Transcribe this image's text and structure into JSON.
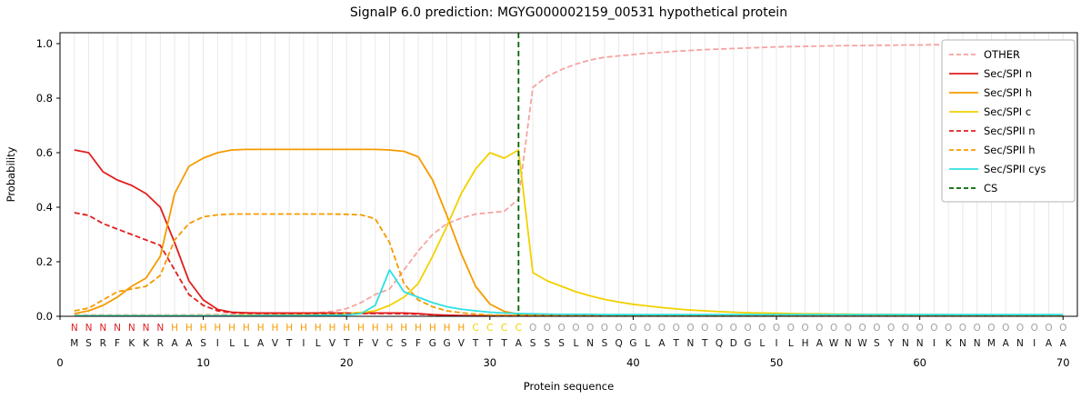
{
  "chart_data": {
    "type": "line",
    "title": "SignalP 6.0 prediction: MGYG000002159_00531 hypothetical protein",
    "xlabel": "Protein sequence",
    "ylabel": "Probability",
    "xlim": [
      0,
      71
    ],
    "ylim": [
      0,
      1.04
    ],
    "xticks": [
      0,
      10,
      20,
      30,
      40,
      50,
      60,
      70
    ],
    "yticks": [
      0.0,
      0.2,
      0.4,
      0.6,
      0.8,
      1.0
    ],
    "grid": "vertical line at every residue position, light gray",
    "legend_position": "upper right",
    "cs_position": 32,
    "cs_label": "CS",
    "cs_color": "#006400",
    "series": [
      {
        "name": "OTHER",
        "color": "#f5a3a0",
        "dash": true,
        "values": [
          0.005,
          0.005,
          0.005,
          0.005,
          0.005,
          0.005,
          0.005,
          0.005,
          0.005,
          0.006,
          0.006,
          0.007,
          0.007,
          0.008,
          0.008,
          0.009,
          0.01,
          0.013,
          0.018,
          0.028,
          0.05,
          0.08,
          0.1,
          0.17,
          0.24,
          0.3,
          0.34,
          0.36,
          0.375,
          0.38,
          0.385,
          0.43,
          0.84,
          0.88,
          0.905,
          0.925,
          0.94,
          0.95,
          0.955,
          0.96,
          0.965,
          0.968,
          0.972,
          0.975,
          0.978,
          0.98,
          0.982,
          0.984,
          0.986,
          0.988,
          0.989,
          0.99,
          0.991,
          0.992,
          0.993,
          0.993,
          0.994,
          0.994,
          0.995,
          0.995,
          0.996,
          0.996,
          0.996,
          0.997,
          0.997,
          0.997,
          0.997,
          0.998,
          0.998,
          0.998
        ]
      },
      {
        "name": "Sec/SPI n",
        "color": "#e01f1f",
        "dash": false,
        "values": [
          0.61,
          0.6,
          0.53,
          0.5,
          0.48,
          0.45,
          0.4,
          0.27,
          0.13,
          0.06,
          0.025,
          0.015,
          0.013,
          0.012,
          0.012,
          0.012,
          0.012,
          0.012,
          0.012,
          0.012,
          0.012,
          0.012,
          0.012,
          0.012,
          0.01,
          0.006,
          0.004,
          0.003,
          0.002,
          0.002,
          0.002,
          0.002,
          0.002,
          0.002,
          0.002,
          0.002,
          0.002,
          0.002,
          0.002,
          0.002,
          0.002,
          0.002,
          0.002,
          0.002,
          0.002,
          0.002,
          0.002,
          0.002,
          0.002,
          0.002,
          0.002,
          0.002,
          0.002,
          0.002,
          0.002,
          0.002,
          0.002,
          0.002,
          0.002,
          0.002,
          0.002,
          0.002,
          0.002,
          0.002,
          0.002,
          0.002,
          0.002,
          0.002,
          0.002,
          0.002
        ]
      },
      {
        "name": "Sec/SPI h",
        "color": "#f59b00",
        "dash": false,
        "values": [
          0.01,
          0.02,
          0.04,
          0.07,
          0.11,
          0.14,
          0.22,
          0.45,
          0.55,
          0.58,
          0.6,
          0.61,
          0.612,
          0.612,
          0.612,
          0.612,
          0.612,
          0.612,
          0.612,
          0.612,
          0.612,
          0.612,
          0.61,
          0.605,
          0.585,
          0.5,
          0.37,
          0.23,
          0.11,
          0.045,
          0.018,
          0.008,
          0.004,
          0.003,
          0.003,
          0.003,
          0.003,
          0.003,
          0.003,
          0.003,
          0.003,
          0.003,
          0.003,
          0.003,
          0.003,
          0.003,
          0.003,
          0.003,
          0.003,
          0.003,
          0.003,
          0.003,
          0.003,
          0.003,
          0.003,
          0.003,
          0.003,
          0.003,
          0.003,
          0.003,
          0.003,
          0.003,
          0.003,
          0.003,
          0.003,
          0.003,
          0.003,
          0.003,
          0.003,
          0.003
        ]
      },
      {
        "name": "Sec/SPI c",
        "color": "#f2d100",
        "dash": false,
        "values": [
          0.003,
          0.003,
          0.003,
          0.003,
          0.003,
          0.003,
          0.003,
          0.003,
          0.003,
          0.003,
          0.003,
          0.003,
          0.004,
          0.004,
          0.005,
          0.005,
          0.006,
          0.007,
          0.008,
          0.01,
          0.014,
          0.02,
          0.04,
          0.07,
          0.12,
          0.22,
          0.33,
          0.45,
          0.54,
          0.6,
          0.58,
          0.61,
          0.16,
          0.13,
          0.11,
          0.09,
          0.075,
          0.062,
          0.052,
          0.044,
          0.038,
          0.032,
          0.027,
          0.023,
          0.02,
          0.017,
          0.015,
          0.013,
          0.012,
          0.011,
          0.01,
          0.009,
          0.009,
          0.008,
          0.008,
          0.007,
          0.007,
          0.007,
          0.006,
          0.006,
          0.006,
          0.006,
          0.005,
          0.005,
          0.005,
          0.005,
          0.005,
          0.005,
          0.005,
          0.005
        ]
      },
      {
        "name": "Sec/SPII n",
        "color": "#e01f1f",
        "dash": true,
        "values": [
          0.38,
          0.37,
          0.34,
          0.32,
          0.3,
          0.28,
          0.26,
          0.17,
          0.08,
          0.04,
          0.02,
          0.013,
          0.011,
          0.01,
          0.01,
          0.01,
          0.01,
          0.01,
          0.01,
          0.01,
          0.01,
          0.01,
          0.01,
          0.009,
          0.008,
          0.005,
          0.003,
          0.002,
          0.002,
          0.002,
          0.002,
          0.002,
          0.002,
          0.002,
          0.002,
          0.002,
          0.002,
          0.002,
          0.002,
          0.002,
          0.002,
          0.002,
          0.002,
          0.002,
          0.002,
          0.002,
          0.002,
          0.002,
          0.002,
          0.002,
          0.002,
          0.002,
          0.002,
          0.002,
          0.002,
          0.002,
          0.002,
          0.002,
          0.002,
          0.002,
          0.002,
          0.002,
          0.002,
          0.002,
          0.002,
          0.002,
          0.002,
          0.002,
          0.002,
          0.002
        ]
      },
      {
        "name": "Sec/SPII h",
        "color": "#f59b00",
        "dash": true,
        "values": [
          0.02,
          0.03,
          0.06,
          0.09,
          0.1,
          0.11,
          0.15,
          0.28,
          0.34,
          0.365,
          0.372,
          0.375,
          0.375,
          0.375,
          0.375,
          0.375,
          0.375,
          0.375,
          0.375,
          0.374,
          0.372,
          0.358,
          0.27,
          0.12,
          0.06,
          0.035,
          0.02,
          0.013,
          0.008,
          0.005,
          0.004,
          0.003,
          0.003,
          0.003,
          0.003,
          0.003,
          0.003,
          0.003,
          0.003,
          0.003,
          0.003,
          0.003,
          0.003,
          0.003,
          0.003,
          0.003,
          0.003,
          0.003,
          0.003,
          0.003,
          0.003,
          0.003,
          0.003,
          0.003,
          0.003,
          0.003,
          0.003,
          0.003,
          0.003,
          0.003,
          0.003,
          0.003,
          0.003,
          0.003,
          0.003,
          0.003,
          0.003,
          0.003,
          0.003,
          0.003
        ]
      },
      {
        "name": "Sec/SPII cys",
        "color": "#2fe0e0",
        "dash": false,
        "values": [
          0.002,
          0.002,
          0.002,
          0.002,
          0.002,
          0.002,
          0.002,
          0.002,
          0.002,
          0.002,
          0.002,
          0.002,
          0.002,
          0.003,
          0.003,
          0.003,
          0.003,
          0.004,
          0.004,
          0.005,
          0.01,
          0.04,
          0.17,
          0.09,
          0.07,
          0.05,
          0.035,
          0.026,
          0.02,
          0.015,
          0.012,
          0.01,
          0.009,
          0.008,
          0.007,
          0.007,
          0.007,
          0.006,
          0.006,
          0.006,
          0.006,
          0.006,
          0.006,
          0.006,
          0.006,
          0.006,
          0.006,
          0.006,
          0.006,
          0.006,
          0.006,
          0.006,
          0.006,
          0.006,
          0.006,
          0.006,
          0.006,
          0.006,
          0.006,
          0.006,
          0.006,
          0.006,
          0.006,
          0.006,
          0.006,
          0.006,
          0.006,
          0.006,
          0.006,
          0.006
        ]
      }
    ]
  },
  "sequence": {
    "residues": "MSRFKKRAASILLAVTILVTFVCSFGGVTTTASSSLNSQGLATNTQDGLILHAWNWSYNNIKNNMANIAA",
    "residue_color": "#111111",
    "regions": [
      {
        "letter": "N",
        "name": "n-region",
        "start": 1,
        "end": 7,
        "color": "#e01f1f"
      },
      {
        "letter": "H",
        "name": "h-region",
        "start": 8,
        "end": 28,
        "color": "#f59b00"
      },
      {
        "letter": "C",
        "name": "c-region",
        "start": 29,
        "end": 32,
        "color": "#f2d100"
      },
      {
        "letter": "O",
        "name": "other-region",
        "start": 33,
        "end": 70,
        "color": "#a0a0a0"
      }
    ]
  }
}
